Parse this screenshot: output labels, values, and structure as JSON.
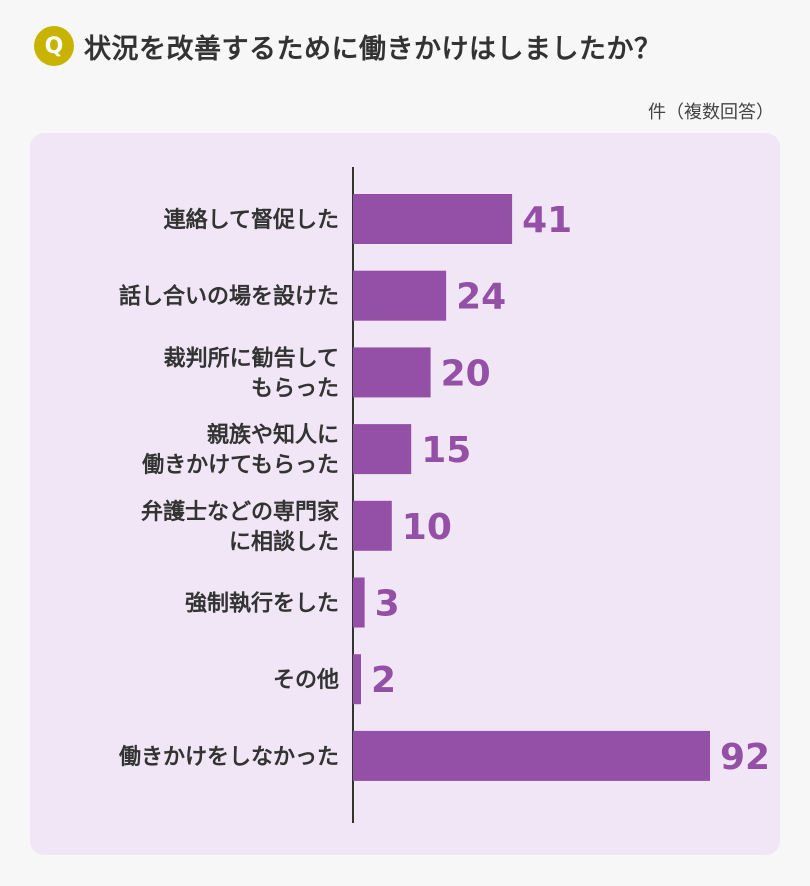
{
  "header": {
    "badge": "Q",
    "title": "状況を改善するために働きかけはしましたか？",
    "unit_note": "件（複数回答）"
  },
  "colors": {
    "bar": "#9350a6",
    "value_label": "#9350a6",
    "panel_bg": "#f0e6f5",
    "badge": "#c8b400",
    "axis": "#333333"
  },
  "chart_data": {
    "type": "bar",
    "orientation": "horizontal",
    "categories": [
      [
        "連絡して督促した"
      ],
      [
        "話し合いの場を設けた"
      ],
      [
        "裁判所に勧告して",
        "もらった"
      ],
      [
        "親族や知人に",
        "働きかけてもらった"
      ],
      [
        "弁護士などの専門家",
        "に相談した"
      ],
      [
        "強制執行をした"
      ],
      [
        "その他"
      ],
      [
        "働きかけをしなかった"
      ]
    ],
    "values": [
      41,
      24,
      20,
      15,
      10,
      3,
      2,
      92
    ],
    "value_labels": [
      "41",
      "24",
      "20",
      "15",
      "10",
      "3",
      "2",
      "92"
    ],
    "xlim": [
      0,
      92
    ],
    "grid": false,
    "legend": "none"
  }
}
